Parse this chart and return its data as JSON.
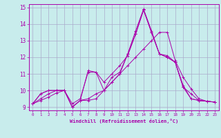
{
  "xlabel": "Windchill (Refroidissement éolien,°C)",
  "bg_color": "#c8ecec",
  "grid_color": "#aaaacc",
  "line_color": "#aa00aa",
  "xlim": [
    -0.5,
    23.5
  ],
  "ylim": [
    8.8,
    15.2
  ],
  "xticks": [
    0,
    1,
    2,
    3,
    4,
    5,
    6,
    7,
    8,
    9,
    10,
    11,
    12,
    13,
    14,
    15,
    16,
    17,
    18,
    19,
    20,
    21,
    22,
    23
  ],
  "yticks": [
    9,
    10,
    11,
    12,
    13,
    14,
    15
  ],
  "series": [
    [
      9.2,
      9.4,
      9.6,
      9.85,
      10.0,
      9.0,
      9.4,
      9.4,
      9.5,
      10.0,
      10.5,
      11.0,
      12.2,
      13.4,
      14.85,
      13.5,
      12.2,
      12.0,
      11.7,
      10.2,
      9.5,
      9.4,
      9.35,
      9.3
    ],
    [
      9.2,
      9.5,
      9.8,
      10.0,
      10.0,
      9.2,
      9.5,
      11.1,
      11.1,
      10.0,
      10.8,
      11.1,
      12.2,
      13.6,
      14.9,
      13.6,
      12.2,
      12.1,
      11.7,
      10.2,
      9.8,
      9.4,
      9.35,
      9.3
    ],
    [
      9.2,
      9.8,
      10.0,
      10.0,
      10.0,
      9.0,
      9.4,
      11.2,
      11.1,
      10.5,
      11.0,
      11.5,
      12.1,
      13.4,
      14.85,
      13.5,
      12.2,
      12.0,
      11.7,
      10.3,
      9.5,
      9.4,
      9.35,
      9.3
    ],
    [
      9.2,
      9.8,
      10.0,
      10.0,
      10.0,
      9.0,
      9.4,
      9.5,
      9.8,
      10.0,
      10.5,
      11.0,
      11.5,
      12.0,
      12.5,
      13.0,
      13.5,
      13.5,
      11.8,
      10.8,
      10.1,
      9.5,
      9.35,
      9.3
    ]
  ]
}
